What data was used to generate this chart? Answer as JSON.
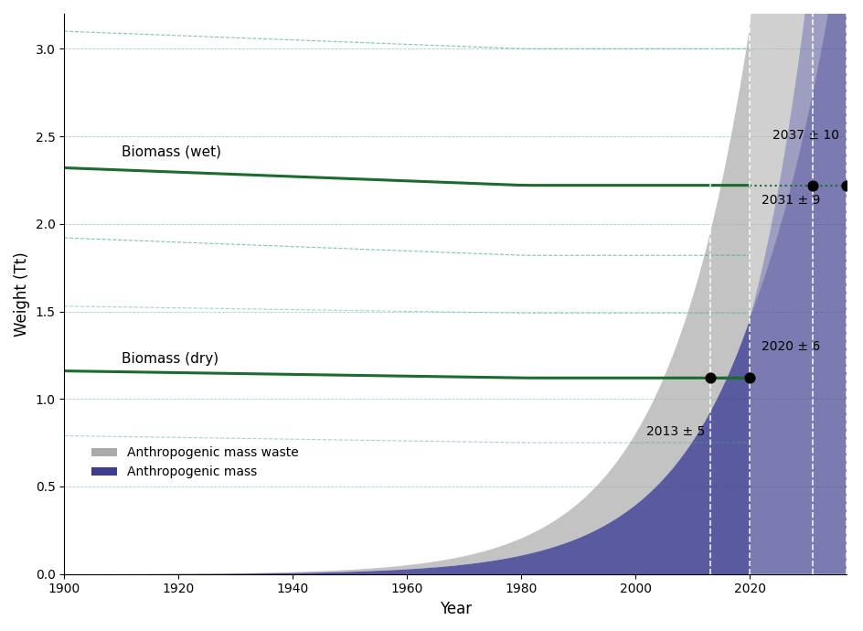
{
  "title": "",
  "xlabel": "Year",
  "ylabel": "Weight (Tt)",
  "xlim": [
    1900,
    2037
  ],
  "ylim": [
    0,
    3.2
  ],
  "yticks": [
    0,
    0.5,
    1.0,
    1.5,
    2.0,
    2.5,
    3.0
  ],
  "xticks": [
    1900,
    1920,
    1940,
    1960,
    1980,
    2000,
    2020
  ],
  "biomass_wet_value": 2.3,
  "biomass_dry_value": 1.15,
  "biomass_wet_label": "Biomass (wet)",
  "biomass_dry_label": "Biomass (dry)",
  "biomass_wet_color": "#1a6b2e",
  "biomass_dry_color": "#1a6b2e",
  "biomass_wet_uncertainty_color": "#80c8a0",
  "anthropogenic_mass_color": "#3d3d8f",
  "anthropogenic_mass_waste_color": "#aaaaaa",
  "annotation_2013": "2013 ± 5",
  "annotation_2020": "2020 ± 6",
  "annotation_2031": "2031 ± 9",
  "annotation_2037": "2037 ± 10",
  "crossover_dry_year": 2013,
  "crossover_dry_value": 1.12,
  "crossover_wet_year1": 2031,
  "crossover_wet_year2": 2037,
  "crossover_wet_value": 2.24,
  "background_color": "#ffffff"
}
